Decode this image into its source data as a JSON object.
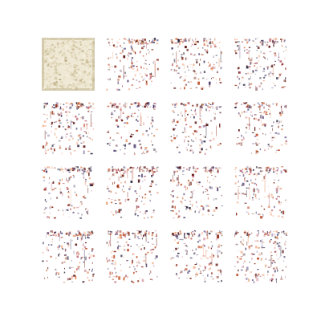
{
  "grid": {
    "rows": 4,
    "cols": 4
  },
  "colors": {
    "background": "#ffffff",
    "first_tile_base": "#efe8d4",
    "first_tile_border": "#c9bf9c",
    "speck_palette": [
      "#5a1410",
      "#8b2e1c",
      "#c0522f",
      "#e08a5a",
      "#f2b89a",
      "#2a2740",
      "#4b3b6a",
      "#7a6d96",
      "#c06a7a"
    ]
  },
  "tiles": [
    {
      "kind": "beige-noise"
    },
    {
      "kind": "speckle"
    },
    {
      "kind": "speckle"
    },
    {
      "kind": "speckle"
    },
    {
      "kind": "speckle"
    },
    {
      "kind": "speckle"
    },
    {
      "kind": "speckle"
    },
    {
      "kind": "speckle"
    },
    {
      "kind": "speckle"
    },
    {
      "kind": "speckle"
    },
    {
      "kind": "speckle"
    },
    {
      "kind": "speckle"
    },
    {
      "kind": "speckle"
    },
    {
      "kind": "speckle"
    },
    {
      "kind": "speckle"
    },
    {
      "kind": "speckle"
    }
  ]
}
